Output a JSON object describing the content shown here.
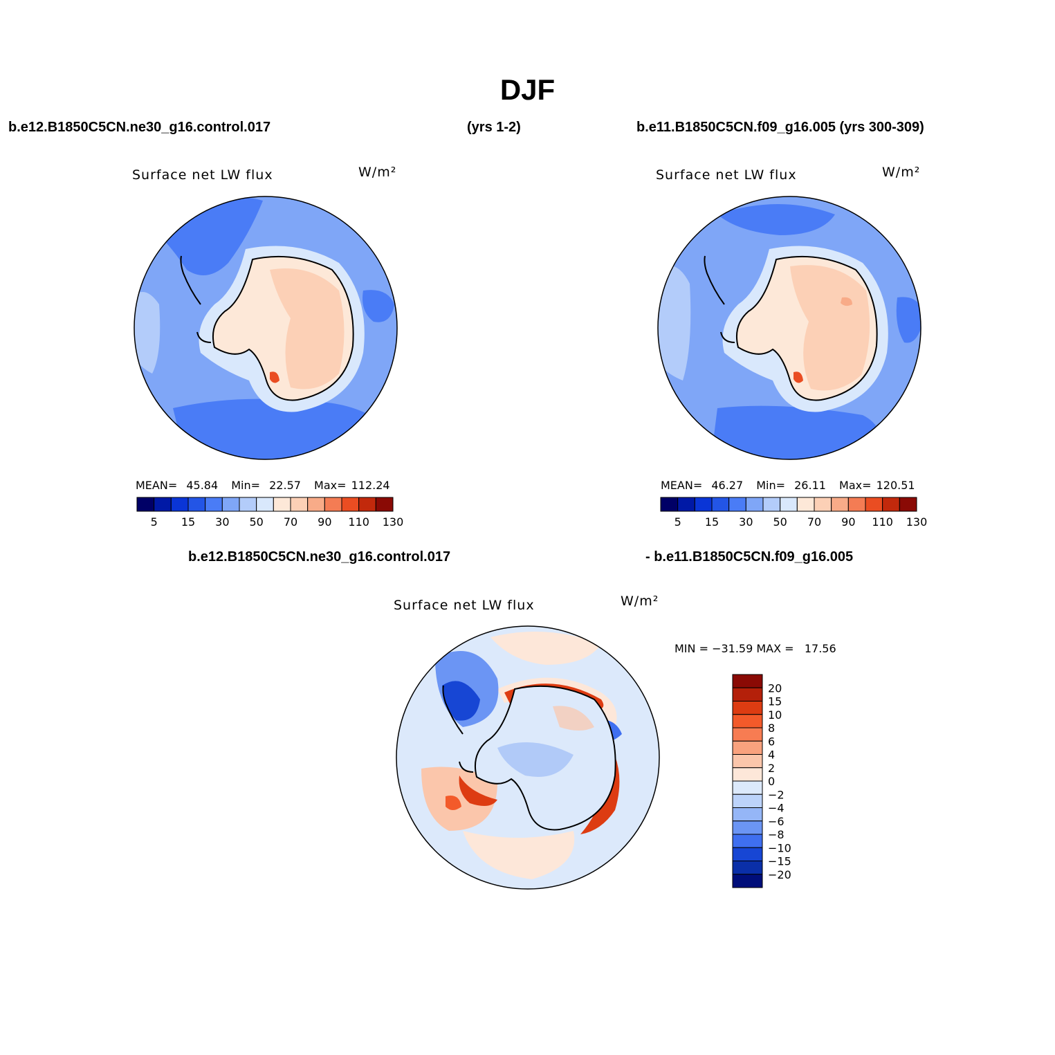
{
  "page": {
    "title": "DJF",
    "header_left": "b.e12.B1850C5CN.ne30_g16.control.017",
    "header_mid": "(yrs 1-2)",
    "header_right": "b.e11.B1850C5CN.f09_g16.005 (yrs 300-309)",
    "diff_left": "b.e12.B1850C5CN.ne30_g16.control.017",
    "diff_right": "- b.e11.B1850C5CN.f09_g16.005"
  },
  "chart_data": [
    {
      "type": "polar-contour-map",
      "variable": "Surface net LW flux",
      "units": "W/m²",
      "case": "b.e12.B1850C5CN.ne30_g16.control.017 (yrs 1-2)",
      "stats": {
        "mean_label": "MEAN=",
        "mean": "45.84",
        "min_label": "Min=",
        "min": "22.57",
        "max_label": "Max=",
        "max": "112.24"
      },
      "colorbar_ticks": [
        "5",
        "15",
        "30",
        "50",
        "70",
        "90",
        "110",
        "130"
      ],
      "levels": [
        5,
        10,
        15,
        20,
        30,
        40,
        50,
        60,
        70,
        80,
        90,
        100,
        110,
        120,
        130
      ]
    },
    {
      "type": "polar-contour-map",
      "variable": "Surface net LW flux",
      "units": "W/m²",
      "case": "b.e11.B1850C5CN.f09_g16.005 (yrs 300-309)",
      "stats": {
        "mean_label": "MEAN=",
        "mean": "46.27",
        "min_label": "Min=",
        "min": "26.11",
        "max_label": "Max=",
        "max": "120.51"
      },
      "colorbar_ticks": [
        "5",
        "15",
        "30",
        "50",
        "70",
        "90",
        "110",
        "130"
      ],
      "levels": [
        5,
        10,
        15,
        20,
        30,
        40,
        50,
        60,
        70,
        80,
        90,
        100,
        110,
        120,
        130
      ]
    },
    {
      "type": "polar-contour-map-difference",
      "variable": "Surface net LW flux",
      "units": "W/m²",
      "stats": {
        "text": "MIN = −31.59 MAX =   17.56"
      },
      "colorbar_labels": [
        "20",
        "15",
        "10",
        "8",
        "6",
        "4",
        "2",
        "0",
        "−2",
        "−4",
        "−6",
        "−8",
        "−10",
        "−15",
        "−20"
      ]
    }
  ],
  "colors": {
    "seq": [
      "#000066",
      "#0019a6",
      "#0a35d6",
      "#2355e6",
      "#4a7cf6",
      "#7fa6f7",
      "#b3ccfa",
      "#d9e8fc",
      "#fde8d8",
      "#fcd0b6",
      "#f8ab88",
      "#f47c54",
      "#ea4d22",
      "#c2290c",
      "#8a0a05"
    ],
    "diff": [
      "#8a0a05",
      "#b4200a",
      "#dd3c12",
      "#f35a2a",
      "#f77c52",
      "#f9a27e",
      "#fbc6ab",
      "#fde7d9",
      "#dce9fb",
      "#bcd3fa",
      "#95b6f7",
      "#6b95f4",
      "#3f6ff0",
      "#1746d4",
      "#0a2fa8",
      "#000e7a"
    ],
    "ocean_main": "#7fa6f7",
    "ocean_dark": "#4a7cf6",
    "ocean_light": "#b3ccfa",
    "coast_band": "#d9e8fc",
    "land_light": "#fde8d8",
    "land_main": "#fcd0b6",
    "land_hot": "#ea4d22"
  }
}
